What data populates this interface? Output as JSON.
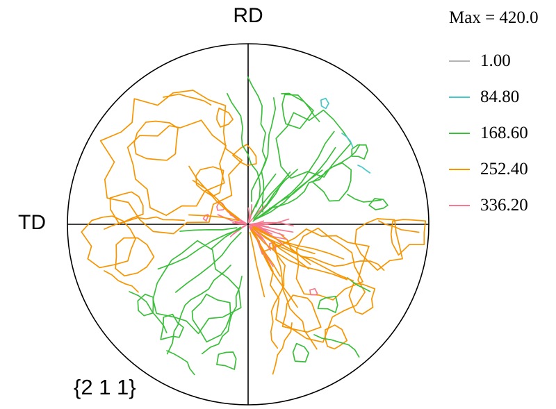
{
  "title": {
    "pole_label": "{2 1 1}"
  },
  "axes": {
    "top": "RD",
    "left": "TD"
  },
  "legend": {
    "max_label": "Max = 420.0",
    "entries": [
      {
        "label": "1.00",
        "color": "#b3b3b3"
      },
      {
        "label": "84.80",
        "color": "#45c8c8"
      },
      {
        "label": "168.60",
        "color": "#3bbf3b"
      },
      {
        "label": "252.40",
        "color": "#f79500"
      },
      {
        "label": "336.20",
        "color": "#f8798f"
      }
    ]
  },
  "chart_data": {
    "type": "heatmap",
    "subtype": "contour-pole-figure",
    "title": "{2 1 1} pole figure",
    "pole": "{2 1 1}",
    "axis_labels": {
      "top": "RD",
      "left": "TD"
    },
    "max_intensity": 420.0,
    "contour_levels": [
      1.0,
      84.8,
      168.6,
      252.4,
      336.2
    ],
    "level_colors": [
      "#b3b3b3",
      "#45c8c8",
      "#3bbf3b",
      "#f79500",
      "#f8798f"
    ],
    "legend_position": "right",
    "grid": false,
    "notes": "Equal-area pole figure with crosshair axes; irregular jagged contour lines: orange dominant in upper-left and lower-right quadrants, green dominant in upper-right and lower-left quadrants, dense pink radial streaks at the center, small cyan fragments in the upper-right."
  }
}
